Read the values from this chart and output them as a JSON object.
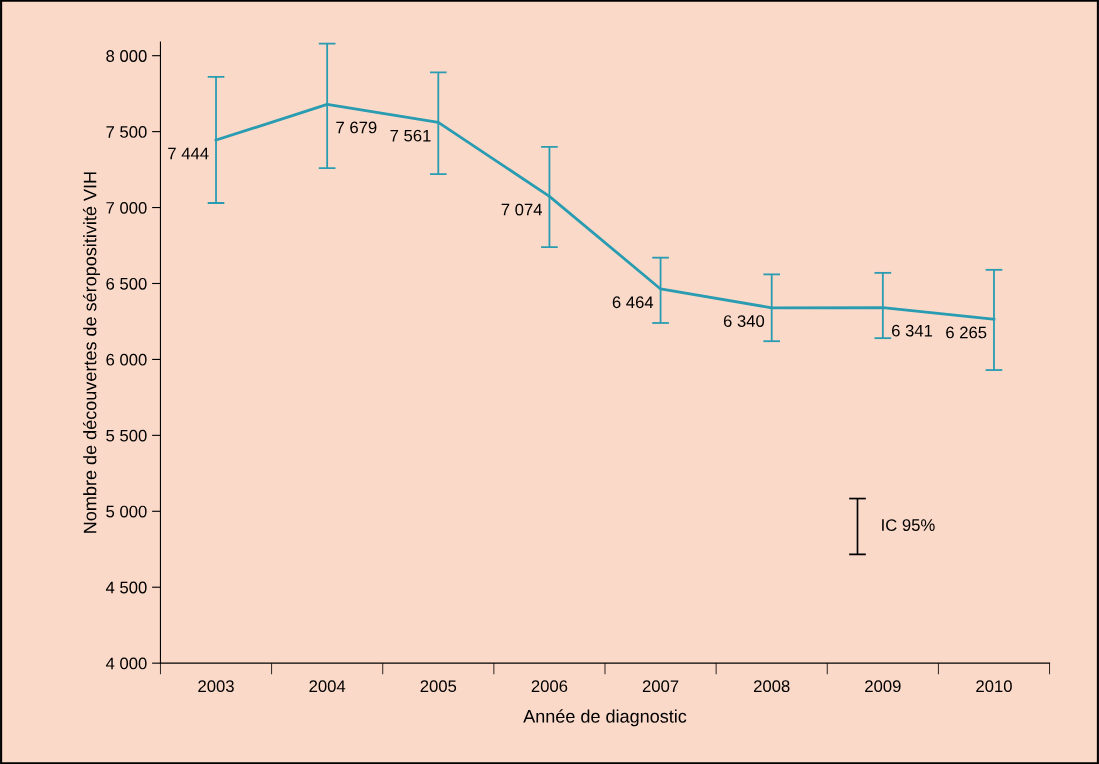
{
  "chart_data": {
    "type": "line",
    "xlabel": "Année de diagnostic",
    "ylabel": "Nombre de découvertes de séropositivité VIH",
    "categories": [
      "2003",
      "2004",
      "2005",
      "2006",
      "2007",
      "2008",
      "2009",
      "2010"
    ],
    "series": [
      {
        "color": "#2a9cb2",
        "values": [
          7444,
          7679,
          7561,
          7074,
          6464,
          6340,
          6341,
          6265
        ],
        "errors": [
          [
            7030,
            7860
          ],
          [
            7260,
            8080
          ],
          [
            7220,
            7890
          ],
          [
            6740,
            7400
          ],
          [
            6240,
            6670
          ],
          [
            6120,
            6560
          ],
          [
            6140,
            6570
          ],
          [
            5930,
            6590
          ]
        ],
        "value_labels": [
          "7 444",
          "7 679",
          "7 561",
          "7 074",
          "6 464",
          "6 340",
          "6 341",
          "6 265"
        ]
      }
    ],
    "ylim": [
      4000,
      8090
    ],
    "yticks": [
      {
        "value": 4000,
        "label": "4 000"
      },
      {
        "value": 4500,
        "label": "4 500"
      },
      {
        "value": 5000,
        "label": "5 000"
      },
      {
        "value": 5500,
        "label": "5 500"
      },
      {
        "value": 6000,
        "label": "6 000"
      },
      {
        "value": 6500,
        "label": "6 500"
      },
      {
        "value": 7000,
        "label": "7 000"
      },
      {
        "value": 7500,
        "label": "7 500"
      },
      {
        "value": 8000,
        "label": "8 000"
      }
    ],
    "annotations": [
      "IC 95%"
    ],
    "grid": false,
    "legend": false,
    "marker": "none",
    "line_style": "solid"
  }
}
